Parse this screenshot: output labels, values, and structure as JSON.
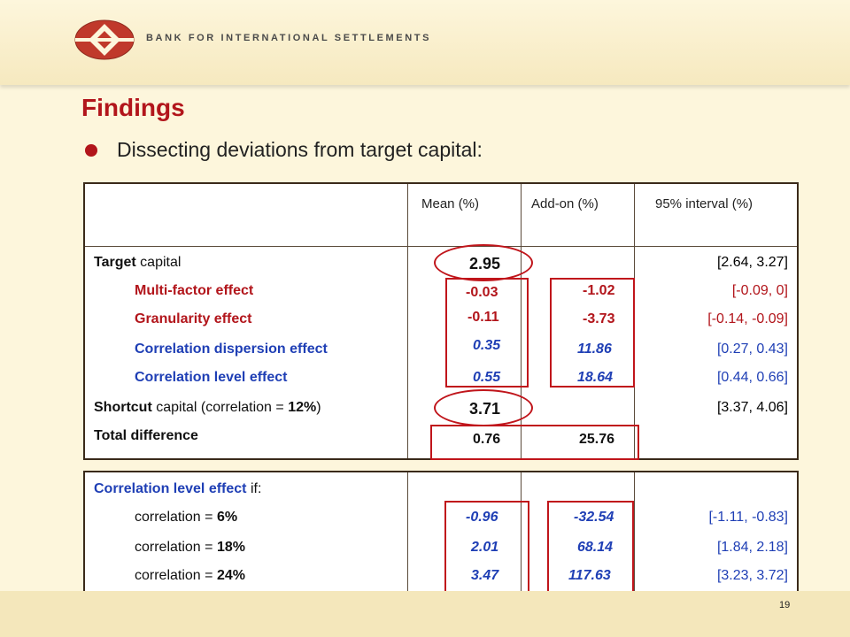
{
  "header": {
    "org_name": "BANK FOR INTERNATIONAL SETTLEMENTS"
  },
  "title": "Findings",
  "bullet": "Dissecting deviations from target capital:",
  "table1": {
    "columns": [
      "",
      "Mean (%)",
      "Add-on (%)",
      "95% interval (%)"
    ],
    "rows": [
      {
        "label_bold": "Target",
        "label_rest": " capital",
        "mean": "2.95",
        "addon": "",
        "interval": "[2.64, 3.27]"
      },
      {
        "label": "Multi-factor effect",
        "mean": "-0.03",
        "addon": "-1.02",
        "interval": "[-0.09, 0]"
      },
      {
        "label": "Granularity effect",
        "mean": "-0.11",
        "addon": "-3.73",
        "interval": "[-0.14, -0.09]"
      },
      {
        "label": "Correlation dispersion effect",
        "mean": "0.35",
        "addon": "11.86",
        "interval": "[0.27, 0.43]"
      },
      {
        "label": "Correlation level effect",
        "mean": "0.55",
        "addon": "18.64",
        "interval": "[0.44, 0.66]"
      },
      {
        "label_bold": "Shortcut",
        "label_rest": " capital (correlation = ",
        "label_bold2": "12%",
        "label_end": ")",
        "mean": "3.71",
        "addon": "",
        "interval": "[3.37, 4.06]"
      },
      {
        "label": "Total difference",
        "mean": "0.76",
        "addon": "25.76",
        "interval": ""
      }
    ]
  },
  "table2": {
    "heading_bold": "Correlation level effect",
    "heading_rest": " if:",
    "rows": [
      {
        "label": "correlation = ",
        "label_bold": "6%",
        "mean": "-0.96",
        "addon": "-32.54",
        "interval": "[-1.11, -0.83]"
      },
      {
        "label": "correlation = ",
        "label_bold": "18%",
        "mean": "2.01",
        "addon": "68.14",
        "interval": "[1.84, 2.18]"
      },
      {
        "label": "correlation = ",
        "label_bold": "24%",
        "mean": "3.47",
        "addon": "117.63",
        "interval": "[3.23, 3.72]"
      }
    ]
  },
  "page_number": "19",
  "colors": {
    "accent_red": "#b2151b",
    "blue": "#1f3fb5",
    "background": "#fdf6dc"
  }
}
